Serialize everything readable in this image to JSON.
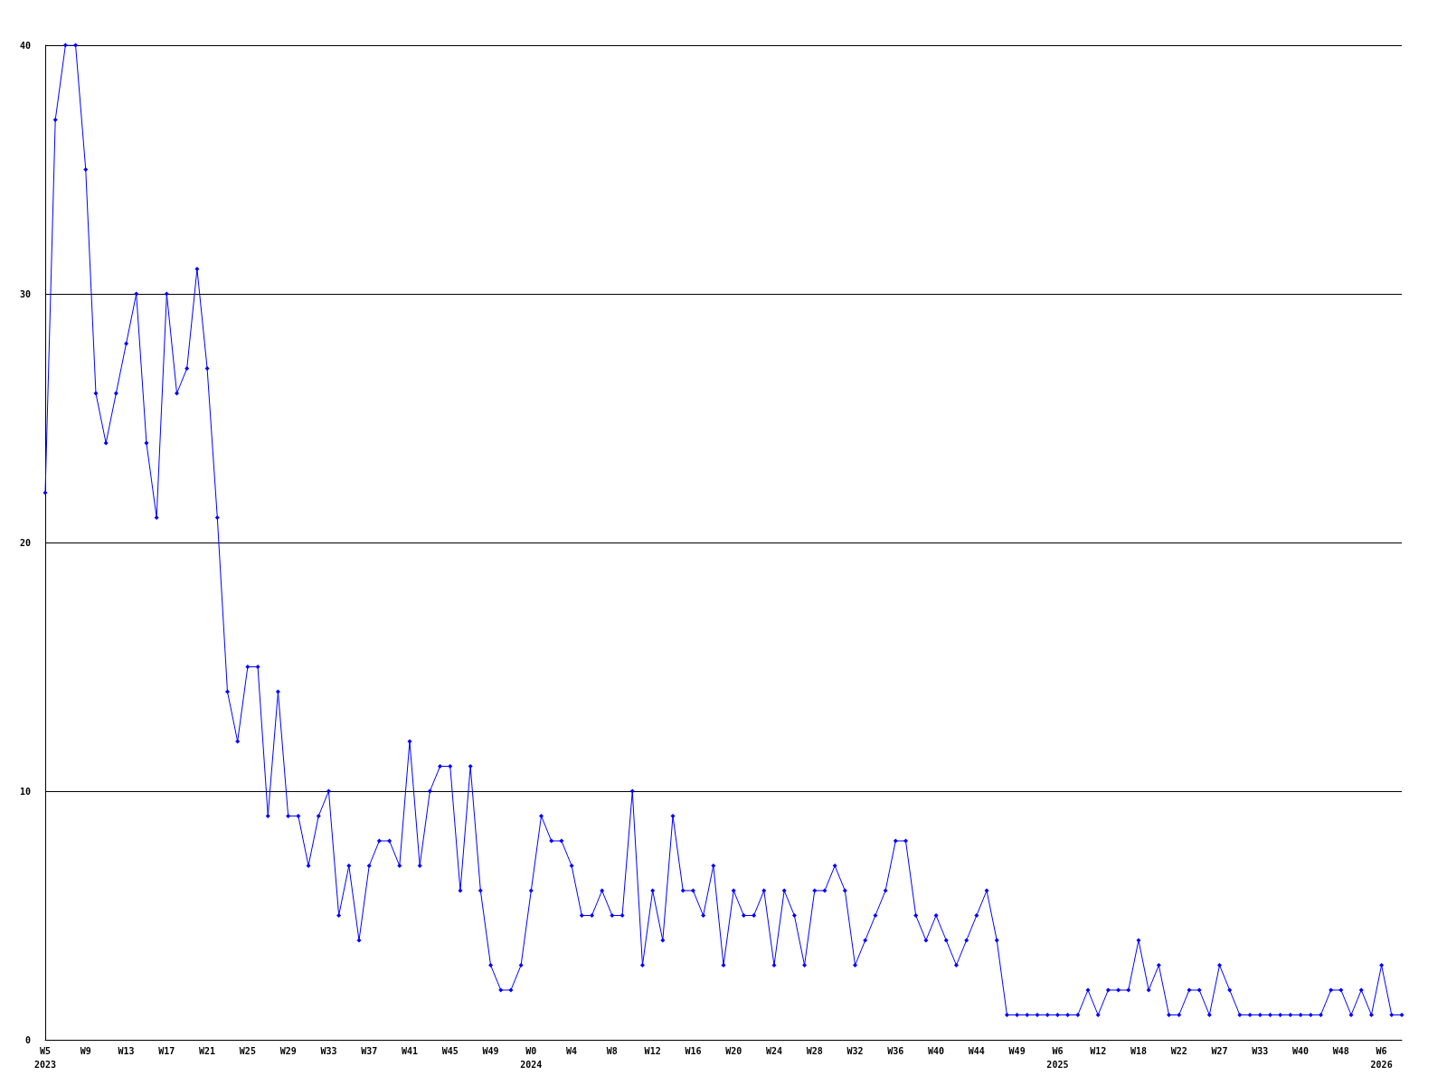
{
  "chart_data": {
    "type": "line",
    "categories": [
      "W5\n2023",
      null,
      null,
      null,
      "W9",
      null,
      null,
      null,
      "W13",
      null,
      null,
      null,
      "W17",
      null,
      null,
      null,
      "W21",
      null,
      null,
      null,
      "W25",
      null,
      null,
      null,
      "W29",
      null,
      null,
      null,
      "W33",
      null,
      null,
      null,
      "W37",
      null,
      null,
      null,
      "W41",
      null,
      null,
      null,
      "W45",
      null,
      null,
      null,
      "W49",
      null,
      null,
      null,
      "W0\n2024",
      null,
      null,
      null,
      "W4",
      null,
      null,
      null,
      "W8",
      null,
      null,
      null,
      "W12",
      null,
      null,
      null,
      "W16",
      null,
      null,
      null,
      "W20",
      null,
      null,
      null,
      "W24",
      null,
      null,
      null,
      "W28",
      null,
      null,
      null,
      "W32",
      null,
      null,
      null,
      "W36",
      null,
      null,
      null,
      "W40",
      null,
      null,
      null,
      "W44",
      null,
      null,
      null,
      "W49",
      null,
      null,
      null,
      "W6\n2025",
      null,
      null,
      null,
      "W12",
      null,
      null,
      null,
      "W18",
      null,
      null,
      null,
      "W22",
      null,
      null,
      null,
      "W27",
      null,
      null,
      null,
      "W33",
      null,
      null,
      null,
      "W40",
      null,
      null,
      null,
      "W48",
      null,
      null,
      null,
      "W6\n2026",
      null,
      null
    ],
    "series": [
      {
        "color": "#0000ff",
        "values": [
          22,
          37,
          40,
          40,
          35,
          26,
          24,
          26,
          28,
          30,
          24,
          21,
          30,
          26,
          27,
          31,
          27,
          21,
          14,
          12,
          15,
          15,
          9,
          14,
          9,
          9,
          7,
          9,
          10,
          5,
          7,
          4,
          7,
          8,
          8,
          7,
          12,
          7,
          10,
          11,
          11,
          6,
          11,
          6,
          3,
          2,
          2,
          3,
          6,
          9,
          8,
          8,
          7,
          5,
          5,
          6,
          5,
          5,
          10,
          3,
          6,
          4,
          9,
          6,
          6,
          5,
          7,
          3,
          6,
          5,
          5,
          6,
          3,
          6,
          5,
          3,
          6,
          6,
          7,
          6,
          3,
          4,
          5,
          6,
          8,
          8,
          5,
          4,
          5,
          4,
          3,
          4,
          5,
          6,
          4,
          1,
          1,
          1,
          1,
          1,
          1,
          1,
          1,
          2,
          1,
          2,
          2,
          2,
          4,
          2,
          3,
          1,
          1,
          2,
          2,
          1,
          3,
          2,
          1,
          1,
          1,
          1,
          1,
          1,
          1,
          1,
          1,
          2,
          2,
          1,
          2,
          1,
          3,
          1,
          1
        ]
      }
    ],
    "ylim": [
      0,
      40
    ],
    "yticks": [
      0,
      10,
      20,
      30,
      40
    ],
    "grid": "y",
    "marker": "diamond",
    "line_style": "solid"
  }
}
